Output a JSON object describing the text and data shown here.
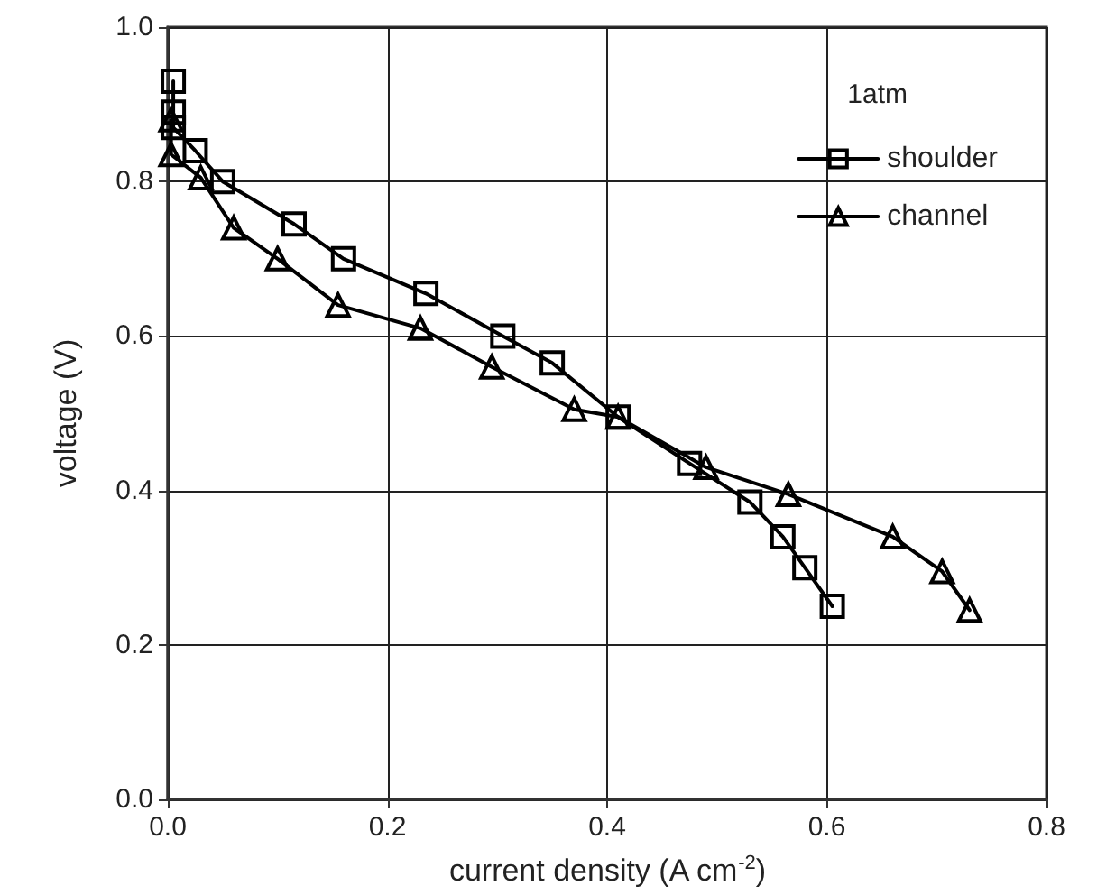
{
  "chart_data": {
    "type": "line",
    "xlabel": "current density (A cm$^{-2}$)",
    "ylabel": "voltage (V)",
    "xlim": [
      0,
      0.8
    ],
    "xticks": [
      {
        "value": 0,
        "label": "0.0"
      },
      0.2,
      0.4,
      0.6,
      0.8
    ],
    "ylim": [
      0,
      1
    ],
    "yticks": [
      {
        "value": 0,
        "label": "0.0"
      },
      0.2,
      0.4,
      0.6,
      0.8,
      {
        "value": 1,
        "label": "1.0"
      }
    ],
    "grid": true,
    "legend": "top right",
    "line_style": "solid",
    "annotations": [
      "1atm"
    ],
    "series": [
      {
        "name": "shoulder",
        "color": "#000000",
        "marker": "square",
        "x": [
          0.005,
          0.005,
          0.005,
          0.025,
          0.05,
          0.115,
          0.16,
          0.235,
          0.305,
          0.35,
          0.41,
          0.475,
          0.53,
          0.56,
          0.58,
          0.605
        ],
        "values": [
          0.93,
          0.89,
          0.87,
          0.84,
          0.8,
          0.745,
          0.7,
          0.655,
          0.6,
          0.565,
          0.495,
          0.435,
          0.385,
          0.34,
          0.3,
          0.25
        ]
      },
      {
        "name": "channel",
        "color": "#000000",
        "marker": "triangle",
        "x": [
          0.003,
          0.003,
          0.03,
          0.06,
          0.1,
          0.155,
          0.23,
          0.295,
          0.37,
          0.41,
          0.49,
          0.565,
          0.66,
          0.705,
          0.73
        ],
        "values": [
          0.88,
          0.835,
          0.805,
          0.74,
          0.7,
          0.64,
          0.61,
          0.56,
          0.505,
          0.495,
          0.43,
          0.395,
          0.34,
          0.295,
          0.245
        ]
      }
    ]
  }
}
